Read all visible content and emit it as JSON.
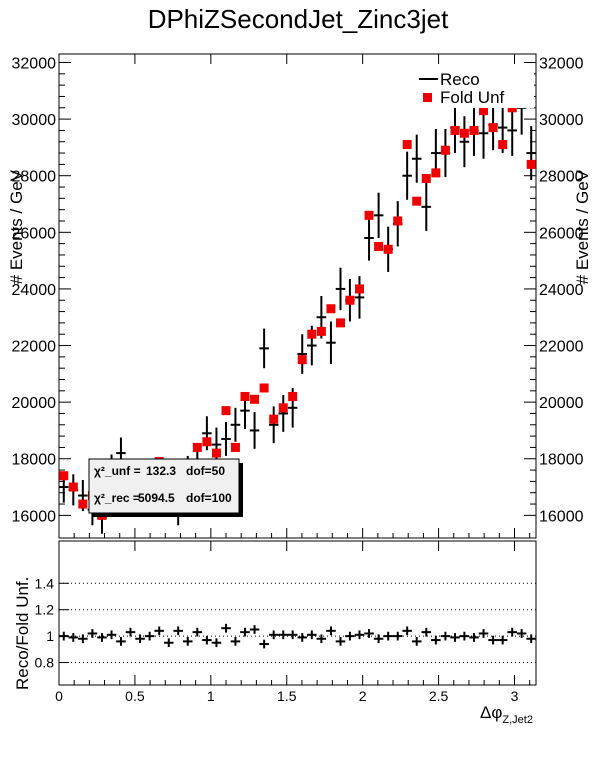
{
  "title": "DPhiZSecondJet_Zinc3jet",
  "chart_data": [
    {
      "type": "scatter",
      "panel": "main",
      "ylabel": "# Events / GeV",
      "xlim": [
        0,
        3.1416
      ],
      "ylim": [
        15200,
        32300
      ],
      "yticks": [
        16000,
        18000,
        20000,
        22000,
        24000,
        26000,
        28000,
        30000,
        32000
      ],
      "ytick_labels": [
        "16000",
        "18000",
        "20000",
        "22000",
        "24000",
        "26000",
        "28000",
        "30000",
        "32000"
      ],
      "legend_position": "top-right",
      "series": [
        {
          "name": "Reco",
          "style": "black error-bar crosses",
          "color": "#000000",
          "x": [
            0.0314,
            0.0942,
            0.157,
            0.22,
            0.283,
            0.346,
            0.408,
            0.471,
            0.534,
            0.597,
            0.66,
            0.723,
            0.785,
            0.848,
            0.911,
            0.974,
            1.037,
            1.1,
            1.162,
            1.225,
            1.288,
            1.351,
            1.414,
            1.477,
            1.539,
            1.602,
            1.665,
            1.728,
            1.791,
            1.854,
            1.916,
            1.979,
            2.042,
            2.105,
            2.168,
            2.231,
            2.293,
            2.356,
            2.419,
            2.482,
            2.545,
            2.608,
            2.67,
            2.733,
            2.796,
            2.859,
            2.922,
            2.985,
            3.047,
            3.11
          ],
          "y": [
            17000,
            16900,
            16700,
            16200,
            15900,
            17600,
            18200,
            16700,
            17000,
            17000,
            17200,
            16700,
            16200,
            17500,
            17900,
            18900,
            18500,
            18700,
            19200,
            19700,
            19000,
            21900,
            19200,
            19600,
            19800,
            21700,
            22000,
            23000,
            22100,
            24000,
            23600,
            23700,
            25800,
            26600,
            25400,
            26300,
            28000,
            28600,
            26900,
            28800,
            28800,
            29700,
            29200,
            29600,
            29500,
            29800,
            29700,
            29600,
            30400,
            28800
          ],
          "yerr": [
            550,
            550,
            550,
            550,
            550,
            550,
            550,
            550,
            550,
            550,
            550,
            550,
            550,
            600,
            600,
            600,
            600,
            600,
            600,
            650,
            650,
            700,
            650,
            650,
            700,
            700,
            700,
            750,
            750,
            750,
            750,
            750,
            800,
            800,
            800,
            800,
            850,
            850,
            850,
            850,
            850,
            900,
            900,
            900,
            900,
            900,
            900,
            900,
            950,
            950
          ]
        },
        {
          "name": "Fold Unf",
          "style": "red square markers",
          "color": "#ee0000",
          "x": [
            0.0314,
            0.0942,
            0.157,
            0.22,
            0.283,
            0.346,
            0.408,
            0.471,
            0.534,
            0.597,
            0.66,
            0.723,
            0.785,
            0.848,
            0.911,
            0.974,
            1.037,
            1.1,
            1.162,
            1.225,
            1.288,
            1.351,
            1.414,
            1.477,
            1.539,
            1.602,
            1.665,
            1.728,
            1.791,
            1.854,
            1.916,
            1.979,
            2.042,
            2.105,
            2.168,
            2.231,
            2.293,
            2.356,
            2.419,
            2.482,
            2.545,
            2.608,
            2.67,
            2.733,
            2.796,
            2.859,
            2.922,
            2.985,
            3.047,
            3.11
          ],
          "y": [
            17400,
            17000,
            16400,
            16700,
            16000,
            17400,
            17300,
            16900,
            17300,
            17200,
            17900,
            17000,
            17400,
            17400,
            18400,
            18600,
            18200,
            19700,
            18400,
            20200,
            20100,
            20500,
            19400,
            19800,
            20200,
            21500,
            22400,
            22500,
            23300,
            22800,
            23600,
            24000,
            26600,
            25500,
            25400,
            26400,
            29100,
            27100,
            27900,
            28100,
            28900,
            29600,
            29500,
            29600,
            30300,
            29700,
            29100,
            30400,
            31100,
            28400
          ]
        }
      ],
      "stat_box": {
        "line1_label": "χ²_unf =",
        "line1_chi2": "132.3",
        "line1_dof": "dof=50",
        "line2_label": "χ²_rec =",
        "line2_chi2": "5094.5",
        "line2_dof": "dof=100"
      }
    },
    {
      "type": "scatter",
      "panel": "ratio",
      "ylabel": "Reco/Fold Unf.",
      "xlabel": "Δφ_{Z,Jet2}",
      "xlim": [
        0,
        3.1416
      ],
      "ylim": [
        0.63,
        1.72
      ],
      "xticks": [
        0,
        0.5,
        1,
        1.5,
        2,
        2.5,
        3
      ],
      "xtick_labels": [
        "0",
        "0.5",
        "1",
        "1.5",
        "2",
        "2.5",
        "3"
      ],
      "yticks": [
        0.8,
        1,
        1.2,
        1.4
      ],
      "ytick_labels": [
        "0.8",
        "1",
        "1.2",
        "1.4"
      ],
      "grid_lines": [
        0.8,
        1,
        1.2,
        1.4
      ],
      "grid": "dotted",
      "series": [
        {
          "name": "Reco/Fold Unf.",
          "color": "#000000",
          "x": [
            0.0314,
            0.0942,
            0.157,
            0.22,
            0.283,
            0.346,
            0.408,
            0.471,
            0.534,
            0.597,
            0.66,
            0.723,
            0.785,
            0.848,
            0.911,
            0.974,
            1.037,
            1.1,
            1.162,
            1.225,
            1.288,
            1.351,
            1.414,
            1.477,
            1.539,
            1.602,
            1.665,
            1.728,
            1.791,
            1.854,
            1.916,
            1.979,
            2.042,
            2.105,
            2.168,
            2.231,
            2.293,
            2.356,
            2.419,
            2.482,
            2.545,
            2.608,
            2.67,
            2.733,
            2.796,
            2.859,
            2.922,
            2.985,
            3.047,
            3.11
          ],
          "y": [
            1.0,
            0.99,
            0.98,
            1.02,
            0.99,
            1.01,
            0.96,
            1.03,
            0.98,
            1.0,
            1.04,
            0.95,
            1.04,
            0.96,
            1.03,
            0.97,
            0.95,
            1.06,
            0.96,
            1.03,
            1.05,
            0.94,
            1.01,
            1.01,
            1.01,
            0.99,
            1.01,
            0.98,
            1.04,
            0.96,
            1.0,
            1.01,
            1.02,
            0.98,
            1.0,
            1.0,
            1.04,
            0.96,
            1.03,
            0.97,
            1.0,
            0.99,
            1.0,
            0.99,
            1.02,
            0.97,
            0.97,
            1.03,
            1.02,
            0.98
          ],
          "yerr": [
            0.033,
            0.033,
            0.033,
            0.033,
            0.033,
            0.033,
            0.033,
            0.033,
            0.033,
            0.033,
            0.033,
            0.033,
            0.033,
            0.033,
            0.033,
            0.033,
            0.033,
            0.033,
            0.033,
            0.033,
            0.033,
            0.033,
            0.033,
            0.033,
            0.033,
            0.033,
            0.033,
            0.033,
            0.033,
            0.033,
            0.033,
            0.033,
            0.033,
            0.033,
            0.033,
            0.033,
            0.033,
            0.033,
            0.033,
            0.033,
            0.033,
            0.033,
            0.033,
            0.033,
            0.033,
            0.033,
            0.033,
            0.033,
            0.033,
            0.033
          ]
        }
      ]
    }
  ]
}
